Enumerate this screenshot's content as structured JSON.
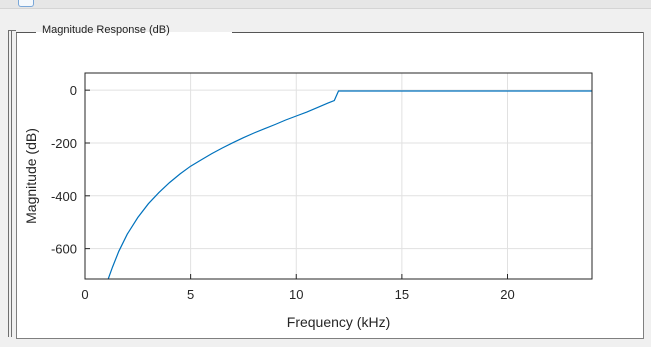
{
  "panel": {
    "title": "Magnitude Response (dB)"
  },
  "colors": {
    "line": "#0072bd",
    "grid": "#e1e1e1",
    "axis": "#262626"
  },
  "chart_data": {
    "type": "line",
    "xlabel": "Frequency (kHz)",
    "ylabel": "Magnitude (dB)",
    "xlim": [
      0,
      24
    ],
    "ylim": [
      -715,
      65
    ],
    "xticks": [
      0,
      5,
      10,
      15,
      20
    ],
    "yticks": [
      0,
      -200,
      -400,
      -600
    ],
    "grid": true,
    "series": [
      {
        "x": [
          1.1,
          1.3,
          1.6,
          2.0,
          2.5,
          3.0,
          3.5,
          4.0,
          4.5,
          5.0,
          5.5,
          6.0,
          6.5,
          7.0,
          7.5,
          8.0,
          8.5,
          9.0,
          9.5,
          10.0,
          10.5,
          11.0,
          11.5,
          11.8,
          12.0,
          13,
          14,
          15,
          16,
          17,
          18,
          19,
          20,
          21,
          22,
          23,
          24
        ],
        "y": [
          -715,
          -670,
          -610,
          -545,
          -482,
          -430,
          -388,
          -350,
          -317,
          -288,
          -264,
          -240,
          -219,
          -199,
          -180,
          -162,
          -146,
          -130,
          -113,
          -98,
          -83,
          -66,
          -49,
          -39,
          -3,
          -3,
          -3,
          -3,
          -3,
          -3,
          -3,
          -3,
          -3,
          -3,
          -3,
          -3,
          -3
        ]
      }
    ]
  }
}
